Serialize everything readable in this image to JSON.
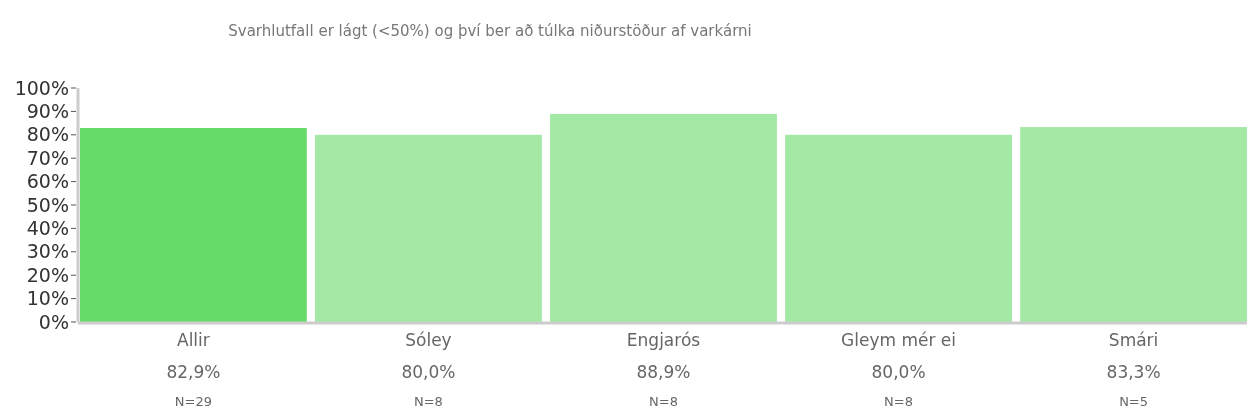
{
  "chart_data": {
    "type": "bar",
    "subtitle": "Svarhlutfall er lágt (<50%) og því ber að túlka niðurstöður af varkárni",
    "categories": [
      "Allir",
      "Sóley",
      "Engjarós",
      "Gleym mér ei",
      "Smári"
    ],
    "values": [
      82.9,
      80.0,
      88.9,
      80.0,
      83.3
    ],
    "value_labels": [
      "82,9%",
      "80,0%",
      "88,9%",
      "80,0%",
      "83,3%"
    ],
    "colors": [
      "#66db6a",
      "#a3e8a5",
      "#a3e8a5",
      "#a3e8a5",
      "#a3e8a5"
    ],
    "ylim": [
      0,
      100
    ],
    "yticks": [
      {
        "value": 0,
        "label": "0%"
      },
      {
        "value": 10,
        "label": "10%"
      },
      {
        "value": 20,
        "label": "20%"
      },
      {
        "value": 30,
        "label": "30%"
      },
      {
        "value": 40,
        "label": "40%"
      },
      {
        "value": 50,
        "label": "50%"
      },
      {
        "value": 60,
        "label": "60%"
      },
      {
        "value": 70,
        "label": "70%"
      },
      {
        "value": 80,
        "label": "80%"
      },
      {
        "value": 90,
        "label": "90%"
      },
      {
        "value": 100,
        "label": "100%"
      }
    ],
    "annotations": [
      "N=29",
      "N=8",
      "N=8",
      "N=8",
      "N=5"
    ]
  }
}
